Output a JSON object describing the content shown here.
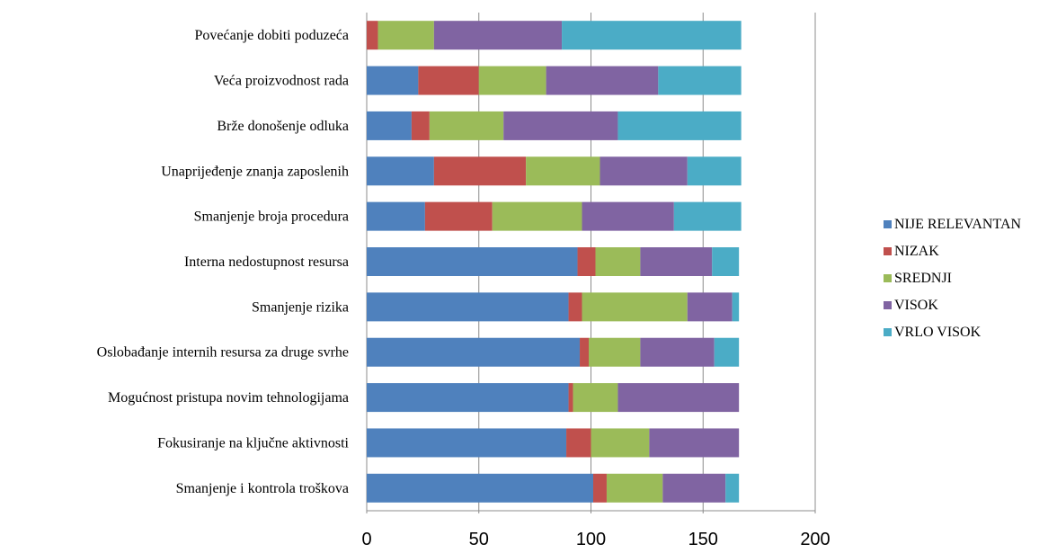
{
  "chart_data": {
    "type": "bar",
    "orientation": "horizontal",
    "stacked": true,
    "title": "",
    "xlabel": "",
    "ylabel": "",
    "xlim": [
      0,
      200
    ],
    "x_ticks": [
      "0",
      "50",
      "100",
      "150",
      "200"
    ],
    "grid": true,
    "legend_position": "right",
    "categories": [
      "Povećanje dobiti poduzeća",
      "Veća proizvodnost rada",
      "Brže donošenje odluka",
      "Unaprijeđenje znanja zaposlenih",
      "Smanjenje broja procedura",
      "Interna nedostupnost resursa",
      "Smanjenje rizika",
      "Oslobađanje internih resursa za druge svrhe",
      "Mogućnost pristupa novim tehnologijama",
      "Fokusiranje na ključne aktivnosti",
      "Smanjenje i kontrola troškova"
    ],
    "series": [
      {
        "name": "NIJE RELEVANTAN",
        "color": "#4f81bd",
        "values": [
          0,
          23,
          20,
          30,
          26,
          94,
          90,
          95,
          90,
          89,
          101
        ]
      },
      {
        "name": "NIZAK",
        "color": "#c0504d",
        "values": [
          5,
          27,
          8,
          41,
          30,
          8,
          6,
          4,
          2,
          11,
          6
        ]
      },
      {
        "name": "SREDNJI",
        "color": "#9bbb59",
        "values": [
          25,
          30,
          33,
          33,
          40,
          20,
          47,
          23,
          20,
          26,
          25
        ]
      },
      {
        "name": "VISOK",
        "color": "#8064a2",
        "values": [
          57,
          50,
          51,
          39,
          41,
          32,
          20,
          33,
          54,
          40,
          28
        ]
      },
      {
        "name": "VRLO VISOK",
        "color": "#4bacc6",
        "values": [
          80,
          37,
          55,
          24,
          30,
          12,
          3,
          11,
          0,
          0,
          6
        ]
      }
    ]
  }
}
